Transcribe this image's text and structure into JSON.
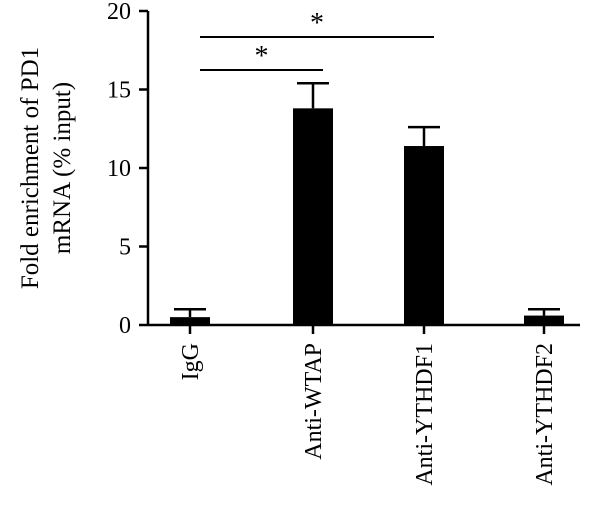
{
  "chart_data": {
    "type": "bar",
    "categories": [
      "IgG",
      "Anti-WTAP",
      "Anti-YTHDF1",
      "Anti-YTHDF2"
    ],
    "values": [
      0.5,
      13.8,
      11.4,
      0.6
    ],
    "error": [
      0.5,
      1.6,
      1.2,
      0.4
    ],
    "ylabel_line1": "Fold enrichment of PD1",
    "ylabel_line2": "mRNA (% input)",
    "ylim": [
      0,
      20
    ],
    "yticks": [
      0,
      5,
      10,
      15,
      20
    ],
    "ytick_labels": [
      "0",
      "5",
      "10",
      "15",
      "20"
    ],
    "bar_color": "#000000",
    "significance": [
      {
        "from": 0,
        "to": 1,
        "label": "*"
      },
      {
        "from": 0,
        "to": 2,
        "label": "*"
      }
    ],
    "grid": false,
    "legend": "none"
  }
}
